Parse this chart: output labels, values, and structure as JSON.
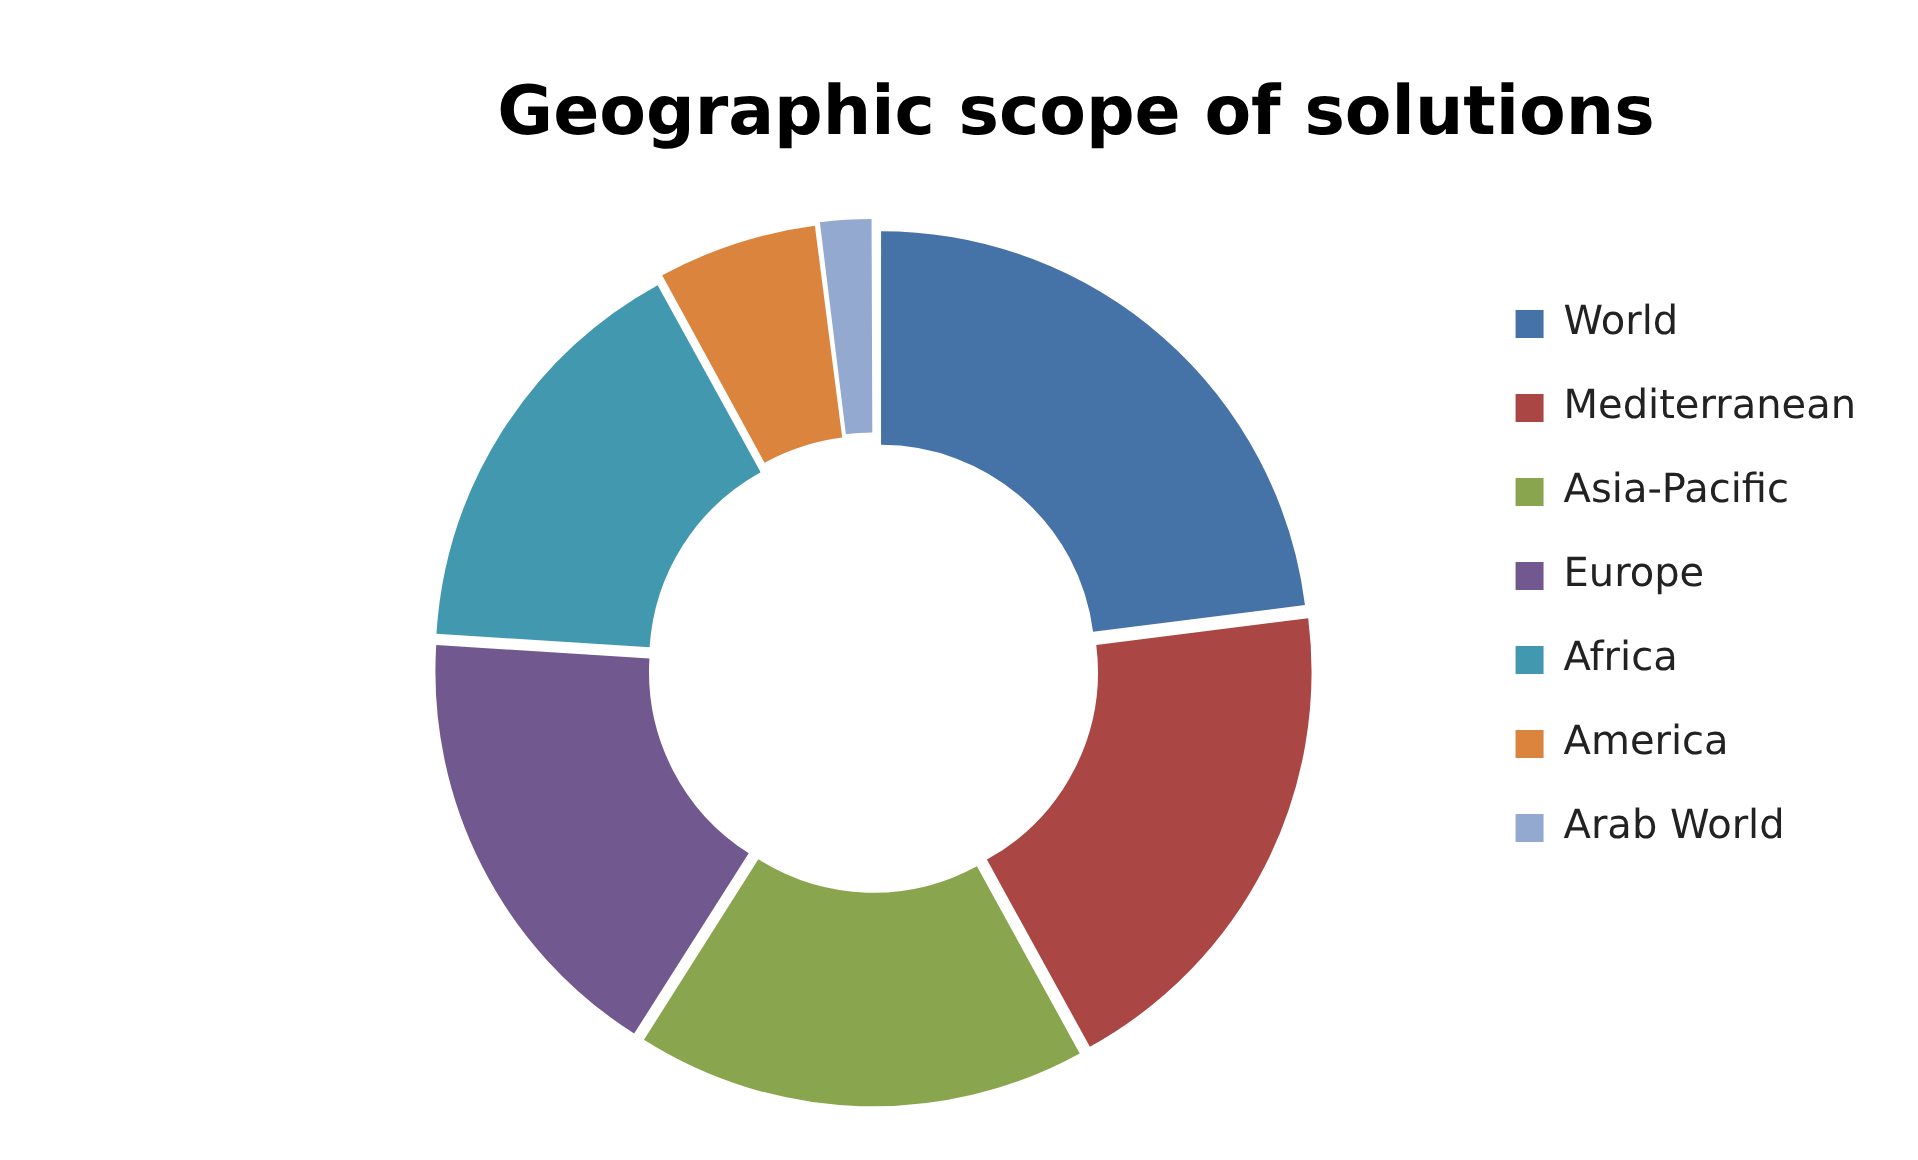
{
  "chart_data": {
    "type": "donut",
    "title": "Geographic scope of solutions",
    "categories": [
      "World",
      "Mediterranean",
      "Asia-Pacific",
      "Europe",
      "Africa",
      "America",
      "Arab World"
    ],
    "values": [
      23,
      19,
      17,
      17,
      16,
      6,
      2
    ],
    "colors": [
      "#4572a7",
      "#aa4643",
      "#89a54e",
      "#71588f",
      "#4198af",
      "#db843d",
      "#93a9cf"
    ],
    "legend": "right"
  }
}
